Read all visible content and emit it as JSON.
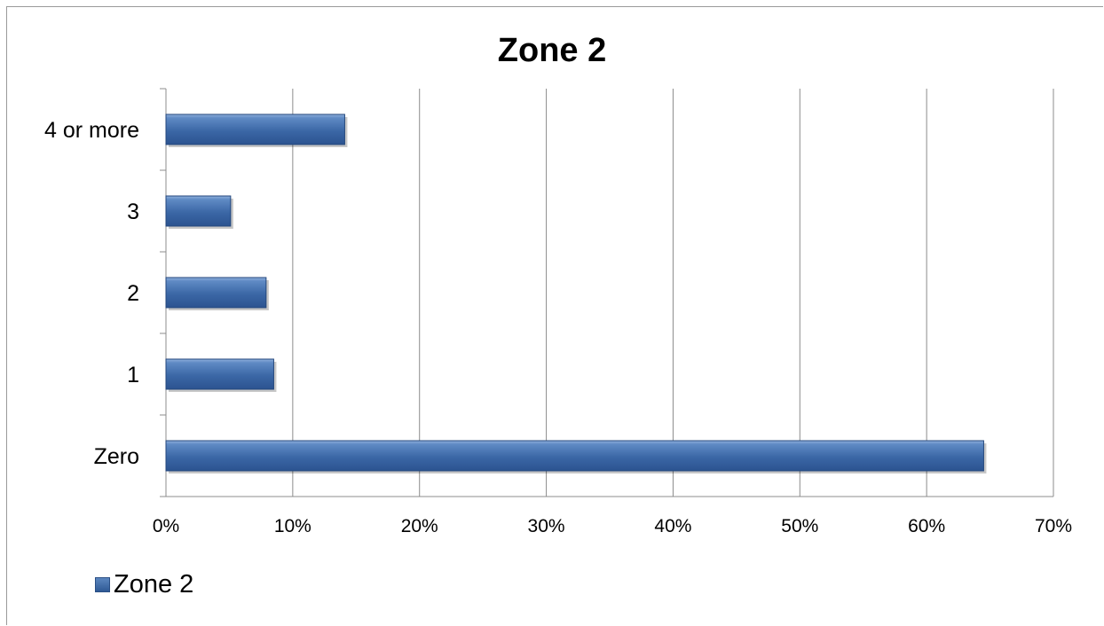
{
  "chart_data": {
    "type": "bar",
    "orientation": "horizontal",
    "title": "Zone 2",
    "categories": [
      "Zero",
      "1",
      "2",
      "3",
      "4 or more"
    ],
    "series": [
      {
        "name": "Zone 2",
        "values": [
          64.5,
          8.5,
          7.9,
          5.1,
          14.1
        ]
      }
    ],
    "xlim": [
      0,
      70
    ],
    "xticks": [
      "0%",
      "10%",
      "20%",
      "30%",
      "40%",
      "50%",
      "60%",
      "70%"
    ],
    "xlabel": "",
    "ylabel": "",
    "grid": "vertical",
    "legend": "bottom-left",
    "bar_color": "#3d6aa8"
  }
}
